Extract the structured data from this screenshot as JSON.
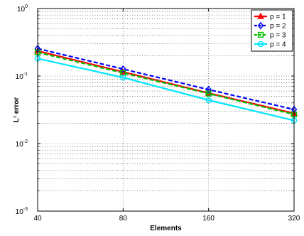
{
  "chart_data": {
    "type": "line",
    "title": "",
    "xlabel": "Elements",
    "ylabel": "L¹ error",
    "x_scale": "log2",
    "y_scale": "log10",
    "xlim": [
      40,
      320
    ],
    "ylim": [
      0.001,
      1
    ],
    "x": [
      40,
      80,
      160,
      320
    ],
    "x_tick_labels": [
      "40",
      "80",
      "160",
      "320"
    ],
    "y_ticks": [
      {
        "value": 0.001,
        "base": "10",
        "exp": "-3"
      },
      {
        "value": 0.01,
        "base": "10",
        "exp": "-2"
      },
      {
        "value": 0.1,
        "base": "10",
        "exp": "-1"
      },
      {
        "value": 1,
        "base": "10",
        "exp": "0"
      }
    ],
    "grid": true,
    "legend_position": "top-right",
    "series": [
      {
        "name": "p = 1",
        "color": "#ff0000",
        "line": "solid",
        "marker": "triangle",
        "values": [
          0.235,
          0.115,
          0.056,
          0.028
        ]
      },
      {
        "name": "p = 2",
        "color": "#0000ff",
        "line": "dashed",
        "marker": "diamond",
        "values": [
          0.255,
          0.127,
          0.063,
          0.032
        ]
      },
      {
        "name": "p = 3",
        "color": "#00c000",
        "line": "dashed",
        "marker": "square",
        "values": [
          0.225,
          0.111,
          0.055,
          0.027
        ]
      },
      {
        "name": "p = 4",
        "color": "#00e5ff",
        "line": "solid",
        "marker": "circle",
        "values": [
          0.182,
          0.095,
          0.044,
          0.022
        ]
      }
    ]
  }
}
